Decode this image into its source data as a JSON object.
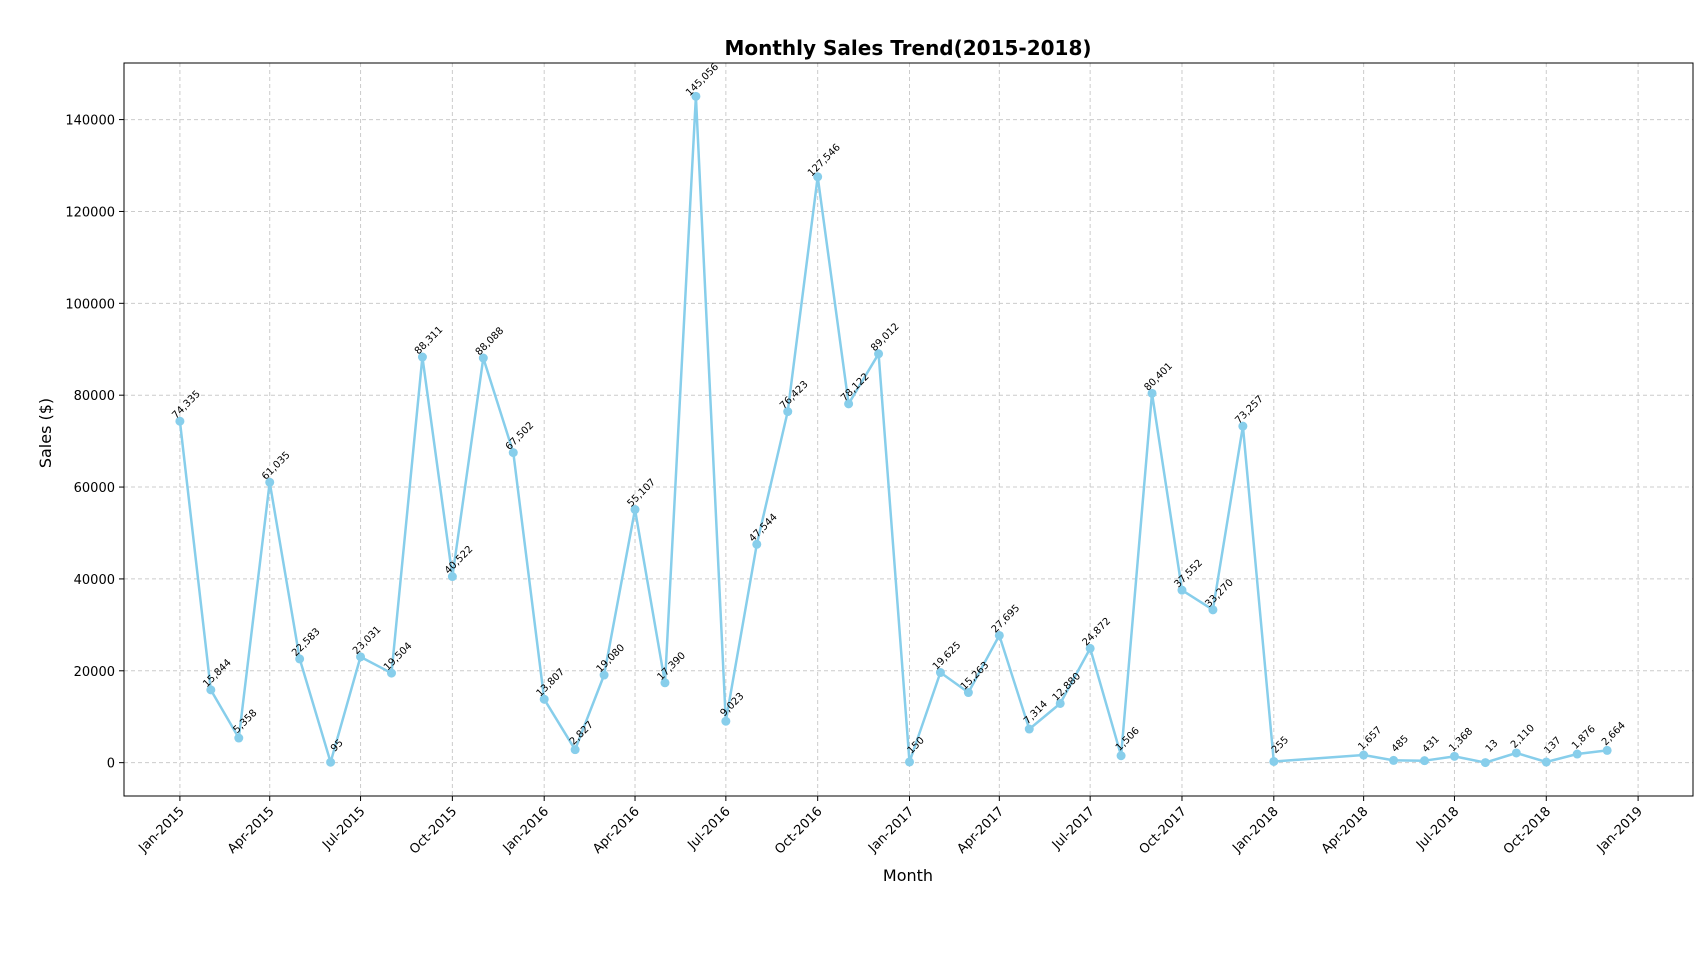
{
  "chart_data": {
    "type": "line",
    "title": "Monthly Sales Trend(2015-2018)",
    "xlabel": "Month",
    "ylabel": "Sales ($)",
    "ylim": [
      -7260,
      152320
    ],
    "xlim": [
      "2014-11-06",
      "2019-02-25"
    ],
    "grid": true,
    "line_color": "#87CEEB",
    "x_ticks": [
      "Jan-2015",
      "Apr-2015",
      "Jul-2015",
      "Oct-2015",
      "Jan-2016",
      "Apr-2016",
      "Jul-2016",
      "Oct-2016",
      "Jan-2017",
      "Apr-2017",
      "Jul-2017",
      "Oct-2017",
      "Jan-2018",
      "Apr-2018",
      "Jul-2018",
      "Oct-2018",
      "Jan-2019"
    ],
    "y_ticks": [
      "0",
      "20000",
      "40000",
      "60000",
      "80000",
      "100000",
      "120000",
      "140000"
    ],
    "points": [
      {
        "date": "2015-01-01",
        "value": 74335,
        "label": "74,335"
      },
      {
        "date": "2015-02-01",
        "value": 15844,
        "label": "15,844"
      },
      {
        "date": "2015-03-01",
        "value": 5358,
        "label": "5,358"
      },
      {
        "date": "2015-04-01",
        "value": 61035,
        "label": "61,035"
      },
      {
        "date": "2015-05-01",
        "value": 22583,
        "label": "22,583"
      },
      {
        "date": "2015-06-01",
        "value": 95,
        "label": "95"
      },
      {
        "date": "2015-07-01",
        "value": 23031,
        "label": "23,031"
      },
      {
        "date": "2015-08-01",
        "value": 19504,
        "label": "19,504"
      },
      {
        "date": "2015-09-01",
        "value": 88311,
        "label": "88,311"
      },
      {
        "date": "2015-10-01",
        "value": 40522,
        "label": "40,522"
      },
      {
        "date": "2015-11-01",
        "value": 88088,
        "label": "88,088"
      },
      {
        "date": "2015-12-01",
        "value": 67502,
        "label": "67,502"
      },
      {
        "date": "2016-01-01",
        "value": 13807,
        "label": "13,807"
      },
      {
        "date": "2016-02-01",
        "value": 2827,
        "label": "2,827"
      },
      {
        "date": "2016-03-01",
        "value": 19080,
        "label": "19,080"
      },
      {
        "date": "2016-04-01",
        "value": 55107,
        "label": "55,107"
      },
      {
        "date": "2016-05-01",
        "value": 17390,
        "label": "17,390"
      },
      {
        "date": "2016-06-01",
        "value": 145056,
        "label": "145,056"
      },
      {
        "date": "2016-07-01",
        "value": 9023,
        "label": "9,023"
      },
      {
        "date": "2016-08-01",
        "value": 47544,
        "label": "47,544"
      },
      {
        "date": "2016-09-01",
        "value": 76423,
        "label": "76,423"
      },
      {
        "date": "2016-10-01",
        "value": 127546,
        "label": "127,546"
      },
      {
        "date": "2016-11-01",
        "value": 78122,
        "label": "78,122"
      },
      {
        "date": "2016-12-01",
        "value": 89012,
        "label": "89,012"
      },
      {
        "date": "2017-01-01",
        "value": 150,
        "label": "150"
      },
      {
        "date": "2017-02-01",
        "value": 19625,
        "label": "19,625"
      },
      {
        "date": "2017-03-01",
        "value": 15263,
        "label": "15,263"
      },
      {
        "date": "2017-04-01",
        "value": 27695,
        "label": "27,695"
      },
      {
        "date": "2017-05-01",
        "value": 7314,
        "label": "7,314"
      },
      {
        "date": "2017-06-01",
        "value": 12880,
        "label": "12,880"
      },
      {
        "date": "2017-07-01",
        "value": 24872,
        "label": "24,872"
      },
      {
        "date": "2017-08-01",
        "value": 1506,
        "label": "1,506"
      },
      {
        "date": "2017-09-01",
        "value": 80401,
        "label": "80,401"
      },
      {
        "date": "2017-10-01",
        "value": 37552,
        "label": "37,552"
      },
      {
        "date": "2017-11-01",
        "value": 33270,
        "label": "33,270"
      },
      {
        "date": "2017-12-01",
        "value": 73257,
        "label": "73,257"
      },
      {
        "date": "2018-01-01",
        "value": 255,
        "label": "255"
      },
      {
        "date": "2018-04-01",
        "value": 1657,
        "label": "1,657"
      },
      {
        "date": "2018-05-01",
        "value": 485,
        "label": "485"
      },
      {
        "date": "2018-06-01",
        "value": 431,
        "label": "431"
      },
      {
        "date": "2018-07-01",
        "value": 1368,
        "label": "1,368"
      },
      {
        "date": "2018-08-01",
        "value": 13,
        "label": "13"
      },
      {
        "date": "2018-09-01",
        "value": 2110,
        "label": "2,110"
      },
      {
        "date": "2018-10-01",
        "value": 137,
        "label": "137"
      },
      {
        "date": "2018-11-01",
        "value": 1876,
        "label": "1,876"
      },
      {
        "date": "2018-12-01",
        "value": 2664,
        "label": "2,664"
      }
    ]
  }
}
